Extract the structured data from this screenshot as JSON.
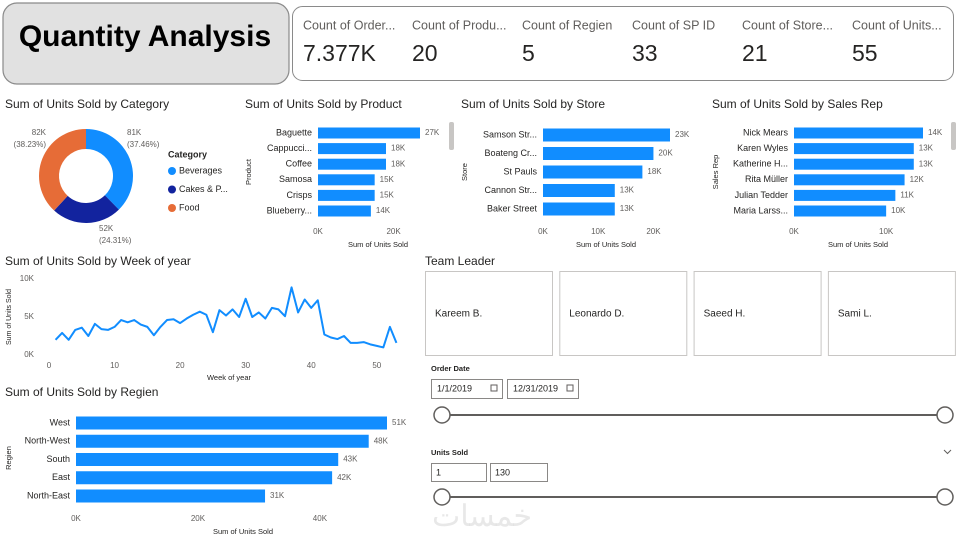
{
  "header": {
    "title": "Quantity Analysis"
  },
  "cards": [
    {
      "title": "Count of Order...",
      "value": "7.377K"
    },
    {
      "title": "Count of Produ...",
      "value": 20
    },
    {
      "title": "Count of Regien",
      "value": 5
    },
    {
      "title": "Count of SP ID",
      "value": 33
    },
    {
      "title": "Count of Store...",
      "value": 21
    },
    {
      "title": "Count of Units...",
      "value": 55
    }
  ],
  "chart_data": [
    {
      "type": "pie",
      "donut": true,
      "title": "Sum of Units Sold by Category",
      "legend_title": "Category",
      "categories": [
        "Beverages",
        "Cakes & P...",
        "Food"
      ],
      "values": [
        81000,
        52000,
        82000
      ],
      "value_labels": [
        "81K",
        "52K",
        "82K"
      ],
      "percent_labels": [
        "(37.46%)",
        "(24.31%)",
        "(38.23%)"
      ],
      "colors": [
        "#118DFF",
        "#12239E",
        "#E66C37"
      ]
    },
    {
      "type": "bar",
      "orientation": "horizontal",
      "title": "Sum of Units Sold by Product",
      "categories": [
        "Baguette",
        "Cappucci...",
        "Coffee",
        "Samosa",
        "Crisps",
        "Blueberry..."
      ],
      "values": [
        27000,
        18000,
        18000,
        15000,
        15000,
        14000
      ],
      "value_labels": [
        "27K",
        "18K",
        "18K",
        "15K",
        "15K",
        "14K"
      ],
      "color": "#118DFF",
      "xlim": [
        0,
        27000
      ],
      "xticks": [
        {
          "value": 0,
          "label": "0K"
        },
        {
          "value": 20000,
          "label": "20K"
        }
      ],
      "x_label": "Sum of Units Sold",
      "y_label": "Product"
    },
    {
      "type": "bar",
      "orientation": "horizontal",
      "title": "Sum of Units Sold by Store",
      "categories": [
        "Samson Str...",
        "Boateng Cr...",
        "St Pauls",
        "Cannon Str...",
        "Baker Street"
      ],
      "values": [
        23000,
        20000,
        18000,
        13000,
        13000
      ],
      "value_labels": [
        "23K",
        "20K",
        "18K",
        "13K",
        "13K"
      ],
      "color": "#118DFF",
      "xlim": [
        0,
        23000
      ],
      "xticks": [
        {
          "value": 0,
          "label": "0K"
        },
        {
          "value": 10000,
          "label": "10K"
        },
        {
          "value": 20000,
          "label": "20K"
        }
      ],
      "x_label": "Sum of Units Sold",
      "y_label": "Store"
    },
    {
      "type": "bar",
      "orientation": "horizontal",
      "title": "Sum of Units Sold by Sales Rep",
      "categories": [
        "Nick Mears",
        "Karen Wyles",
        "Katherine H...",
        "Rita Müller",
        "Julian Tedder",
        "Maria Larss..."
      ],
      "values": [
        14000,
        13000,
        13000,
        12000,
        11000,
        10000
      ],
      "value_labels": [
        "14K",
        "13K",
        "13K",
        "12K",
        "11K",
        "10K"
      ],
      "color": "#118DFF",
      "xlim": [
        0,
        14000
      ],
      "xticks": [
        {
          "value": 0,
          "label": "0K"
        },
        {
          "value": 10000,
          "label": "10K"
        }
      ],
      "x_label": "Sum of Units Sold",
      "y_label": "Sales Rep"
    },
    {
      "type": "line",
      "title": "Sum of Units Sold by Week of year",
      "x": [
        1,
        2,
        3,
        4,
        5,
        6,
        7,
        8,
        9,
        10,
        11,
        12,
        13,
        14,
        15,
        16,
        17,
        18,
        19,
        20,
        21,
        22,
        23,
        24,
        25,
        26,
        27,
        28,
        29,
        30,
        31,
        32,
        33,
        34,
        35,
        36,
        37,
        38,
        39,
        40,
        41,
        42,
        43,
        44,
        45,
        46,
        47,
        48,
        49,
        50,
        51,
        52,
        53
      ],
      "values": [
        2000,
        2900,
        2000,
        3300,
        3600,
        2500,
        4100,
        3400,
        3300,
        3700,
        4600,
        4300,
        4600,
        4000,
        3700,
        2600,
        3700,
        4600,
        4700,
        4200,
        4800,
        5300,
        5700,
        5300,
        3000,
        5900,
        5200,
        6000,
        5000,
        7400,
        5000,
        5600,
        4800,
        6200,
        6000,
        5100,
        8900,
        5600,
        7300,
        6200,
        7200,
        2700,
        2300,
        2100,
        2500,
        1600,
        1600,
        1700,
        1400,
        1200,
        1000,
        3700,
        1600
      ],
      "color": "#118DFF",
      "xlim": [
        0,
        54
      ],
      "xticks": [
        0,
        10,
        20,
        30,
        40,
        50
      ],
      "ylim": [
        0,
        10000
      ],
      "yticks": [
        {
          "value": 0,
          "label": "0K"
        },
        {
          "value": 5000,
          "label": "5K"
        },
        {
          "value": 10000,
          "label": "10K"
        }
      ],
      "x_label": "Week of year",
      "y_label": "Sum of Units Sold"
    },
    {
      "type": "bar",
      "orientation": "horizontal",
      "title": "Sum of Units Sold by Regien",
      "categories": [
        "West",
        "North-West",
        "South",
        "East",
        "North-East"
      ],
      "values": [
        51000,
        48000,
        43000,
        42000,
        31000
      ],
      "value_labels": [
        "51K",
        "48K",
        "43K",
        "42K",
        "31K"
      ],
      "color": "#118DFF",
      "xlim": [
        0,
        51000
      ],
      "xticks": [
        {
          "value": 0,
          "label": "0K"
        },
        {
          "value": 20000,
          "label": "20K"
        },
        {
          "value": 40000,
          "label": "40K"
        }
      ],
      "x_label": "Sum of Units Sold",
      "y_label": "Regien"
    }
  ],
  "team_leader": {
    "title": "Team Leader",
    "items": [
      "Kareem B.",
      "Leonardo D.",
      "Saeed H.",
      "Sami L."
    ]
  },
  "order_date": {
    "title": "Order Date",
    "start": "1/1/2019",
    "end": "12/31/2019"
  },
  "units_sold": {
    "title": "Units Sold",
    "min": 1,
    "max": 130
  },
  "watermark": "خمسات"
}
